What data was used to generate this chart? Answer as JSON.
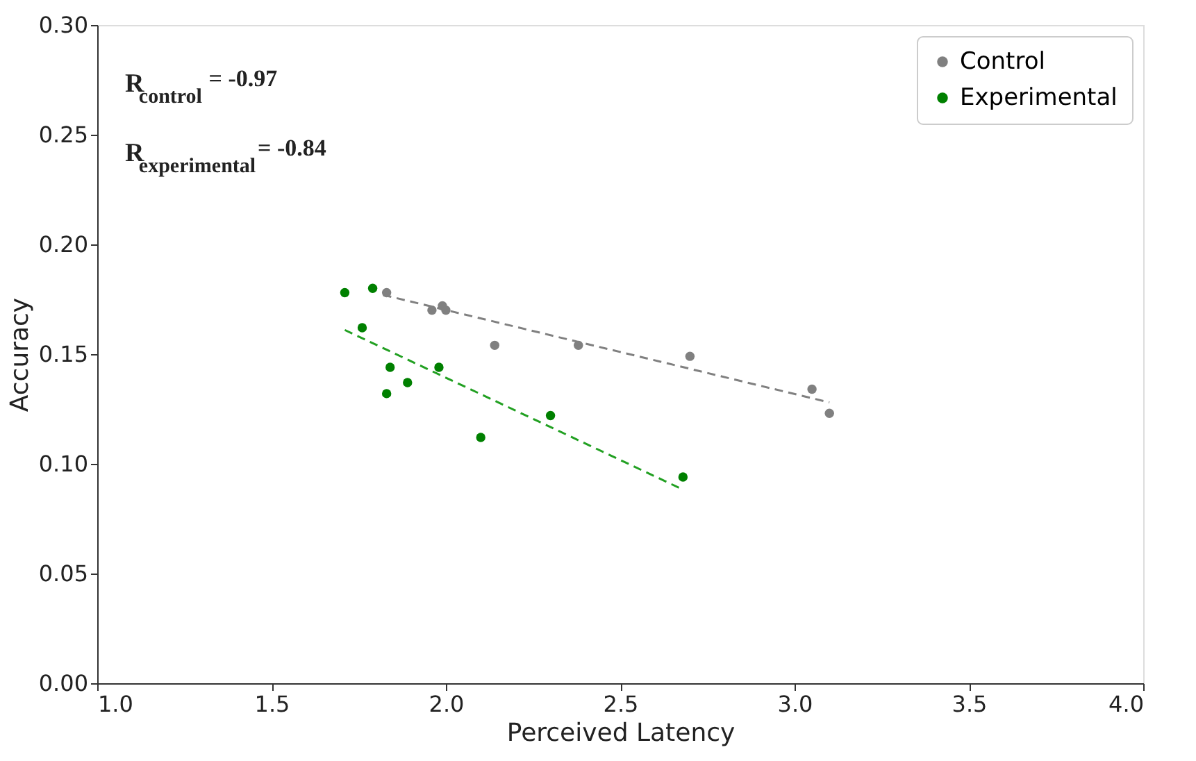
{
  "chart_data": {
    "type": "scatter",
    "xlabel": "Perceived Latency",
    "ylabel": "Accuracy",
    "xlim": [
      1.0,
      4.0
    ],
    "xticks": [
      {
        "value": 1.0,
        "label": "1.0"
      },
      1.5,
      {
        "value": 2.0,
        "label": "2.0"
      },
      2.5,
      {
        "value": 3.0,
        "label": "3.0"
      },
      3.5,
      {
        "value": 4.0,
        "label": "4.0"
      }
    ],
    "ylim": [
      0.0,
      0.3
    ],
    "yticks": [
      {
        "value": 0.0,
        "label": "0.00"
      },
      0.05,
      {
        "value": 0.1,
        "label": "0.10"
      },
      0.15,
      {
        "value": 0.2,
        "label": "0.20"
      },
      0.25,
      {
        "value": 0.3,
        "label": "0.30"
      }
    ],
    "grid": false,
    "legend": "top right",
    "annotations": [
      "R$_{control}$ = -0.97",
      "R$_{experimental}$ = -0.84"
    ],
    "series": [
      {
        "name": "Control",
        "color": "#808080",
        "marker": "circle",
        "x": [
          1.83,
          1.96,
          1.99,
          2.0,
          2.14,
          2.38,
          2.7,
          3.05,
          3.1
        ],
        "values": [
          0.178,
          0.17,
          0.172,
          0.17,
          0.154,
          0.154,
          0.149,
          0.134,
          0.123
        ]
      },
      {
        "name": "Experimental",
        "color": "#008000",
        "marker": "circle",
        "x": [
          1.71,
          1.79,
          1.76,
          1.84,
          1.83,
          1.89,
          1.98,
          2.1,
          2.3,
          2.68
        ],
        "values": [
          0.178,
          0.18,
          0.162,
          0.144,
          0.132,
          0.137,
          0.144,
          0.112,
          0.122,
          0.094
        ]
      },
      {
        "type": "line",
        "line_style": "dashed",
        "color": "#808080",
        "x": [
          1.82,
          3.1
        ],
        "values": [
          0.177,
          0.128
        ]
      },
      {
        "type": "line",
        "line_style": "dashed",
        "color": "#22a022",
        "x": [
          1.71,
          2.67
        ],
        "values": [
          0.161,
          0.089
        ]
      }
    ]
  }
}
